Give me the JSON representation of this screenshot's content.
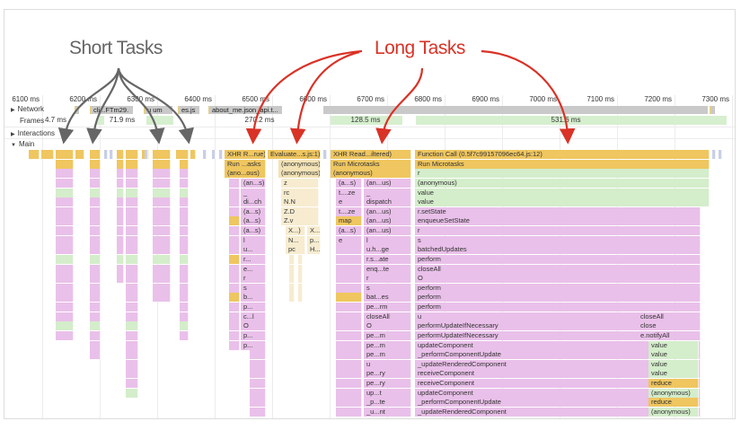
{
  "annotations": {
    "short_tasks": "Short Tasks",
    "long_tasks": "Long Tasks",
    "short_color": "#666666",
    "long_color": "#d93226"
  },
  "ruler": [
    "6100 ms",
    "6200 ms",
    "6300 ms",
    "6400 ms",
    "6500 ms",
    "6600 ms",
    "6700 ms",
    "6800 ms",
    "6900 ms",
    "7000 ms",
    "7100 ms",
    "7200 ms",
    "7300 ms"
  ],
  "tracks": {
    "network": "Network",
    "frames": "Frames",
    "interactions": "Interactions",
    "main": "Main"
  },
  "network_requests": [
    "cli...FTm29.",
    "u um",
    "es.js",
    "about_me.json_api.t..."
  ],
  "frames": [
    "4.7 ms",
    "71.9 ms",
    "270.2 ms",
    "128.5 ms",
    "531.6 ms"
  ],
  "colors": {
    "scripting": "#efc65f",
    "function": "#e9c0e9",
    "react": "#d4edcb",
    "frame": "#d6efcf",
    "network": "#c9c9c9"
  },
  "main": {
    "task1": {
      "top": [
        "XHR R...rue)",
        "Run ...asks",
        "(ano...ous)"
      ],
      "calls": [
        "(an...s)",
        "_",
        "di...ch",
        "(a...s)",
        "(a...s)",
        "(a...s)",
        "l",
        "u...",
        "r...",
        "e...",
        "r",
        "s",
        "b...",
        "p...",
        "c...l",
        "O",
        "p...",
        "p..."
      ]
    },
    "task2": {
      "top": [
        "Evaluate...s.js:1)",
        "(anonymous)",
        "(anonymous)"
      ],
      "calls": [
        "z",
        "rc",
        "N.N",
        "Z.D",
        "Z.v"
      ],
      "left": [
        "X...)",
        "N...",
        "pc"
      ],
      "right": [
        "X...)",
        "p...",
        "H..."
      ]
    },
    "task3": {
      "top": [
        "XHR Read...iltered)",
        "Run Microtasks",
        "(anonymous)"
      ],
      "left": [
        "(a...s)",
        "t....ze",
        "e",
        "t....ze",
        "map",
        "(a...s)",
        "e"
      ],
      "right": [
        "(an...us)",
        "_",
        "dispatch",
        "(an...us)",
        "(an...us)",
        "(an...us)",
        "l",
        "u.h...ge",
        "r.s...ate",
        "enq...te",
        "r",
        "s",
        "bat...es",
        "pe...rm",
        "closeAll",
        "O",
        "pe...m",
        "pe...m",
        "pe...m",
        "u",
        "pe...ry",
        "pe...ry",
        "up...t",
        "_p...te",
        "_u...nt"
      ]
    },
    "task4": {
      "top": [
        "Function Call (0.5f7c99157096ec64.js:12)",
        "Run Microtasks"
      ],
      "calls": [
        "r",
        "(anonymous)",
        "value",
        "value",
        "r.setState",
        "enqueueSetState",
        "r",
        "s",
        "batchedUpdates",
        "perform",
        "closeAll",
        "O",
        "perform",
        "perform",
        "perform",
        "u",
        "performUpdateIfNecessary",
        "performUpdateIfNecessary",
        "updateComponent",
        "_performComponentUpdate",
        "_updateRenderedComponent",
        "receiveComponent",
        "receiveComponent",
        "updateComponent",
        "_performComponentUpdate",
        "_updateRenderedComponent"
      ],
      "nested": [
        "closeAll",
        "close",
        "e.notifyAll"
      ],
      "inner": [
        "value",
        "value",
        "value",
        "value",
        "reduce",
        "(anonymous)",
        "reduce",
        "(anonymous)"
      ]
    }
  }
}
